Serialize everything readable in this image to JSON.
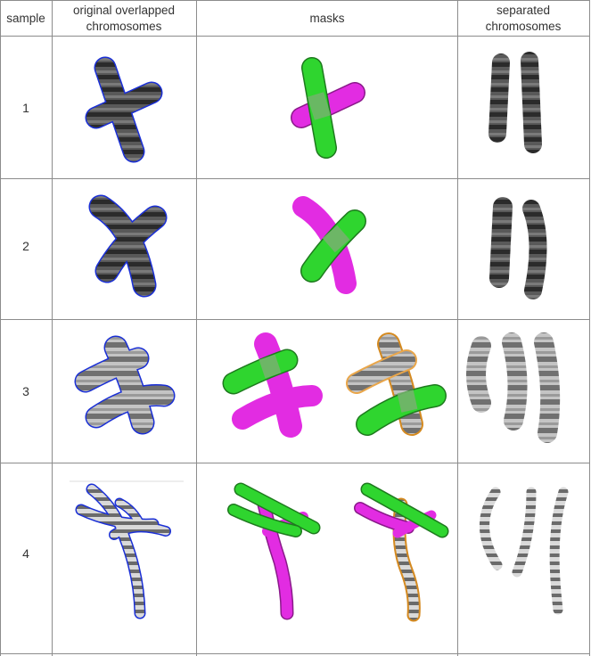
{
  "table": {
    "headers": {
      "sample": "sample",
      "original_line1": "original overlapped",
      "original_line2": "chromosomes",
      "masks": "masks",
      "separated_line1": "separated",
      "separated_line2": "chromosomes"
    },
    "rows": [
      {
        "label": "1",
        "mask_count": 1,
        "separated_count": 2
      },
      {
        "label": "2",
        "mask_count": 1,
        "separated_count": 2
      },
      {
        "label": "3",
        "mask_count": 2,
        "separated_count": 3
      },
      {
        "label": "4",
        "mask_count": 2,
        "separated_count": 3
      }
    ]
  },
  "colors": {
    "outline_blue": "#1a2fd6",
    "mask_green": "#2fd52f",
    "mask_magenta": "#e22ce2",
    "mask_orange": "#e9a64a",
    "mask_overlap": "#78b070",
    "chromosome_dark": "#3a3a3a",
    "chromosome_light": "#b9b9b9",
    "grid": "#8c8c8c"
  }
}
